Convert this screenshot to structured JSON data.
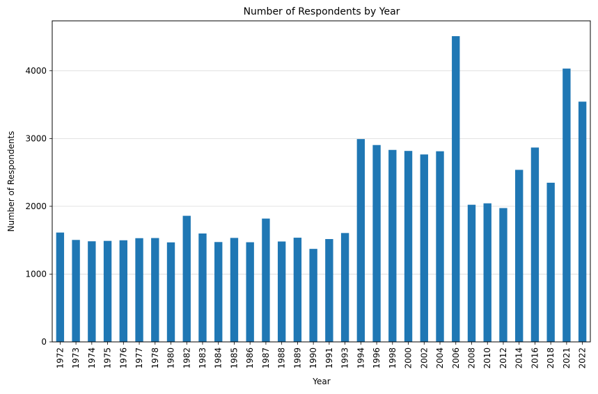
{
  "chart_data": {
    "type": "bar",
    "title": "Number of Respondents by Year",
    "xlabel": "Year",
    "ylabel": "Number of Respondents",
    "categories": [
      "1972",
      "1973",
      "1974",
      "1975",
      "1976",
      "1977",
      "1978",
      "1980",
      "1982",
      "1983",
      "1984",
      "1985",
      "1986",
      "1987",
      "1988",
      "1989",
      "1990",
      "1991",
      "1993",
      "1994",
      "1996",
      "1998",
      "2000",
      "2002",
      "2004",
      "2006",
      "2008",
      "2010",
      "2012",
      "2014",
      "2016",
      "2018",
      "2021",
      "2022"
    ],
    "values": [
      1613,
      1504,
      1484,
      1490,
      1499,
      1530,
      1532,
      1468,
      1860,
      1599,
      1473,
      1534,
      1470,
      1819,
      1481,
      1537,
      1372,
      1517,
      1606,
      2992,
      2904,
      2832,
      2817,
      2765,
      2812,
      4510,
      2023,
      2044,
      1974,
      2538,
      2867,
      2348,
      4032,
      3544
    ],
    "yticks": [
      0,
      1000,
      2000,
      3000,
      4000
    ],
    "ylim": [
      0,
      4736
    ],
    "grid": "y",
    "bar_color": "#1f77b4"
  }
}
